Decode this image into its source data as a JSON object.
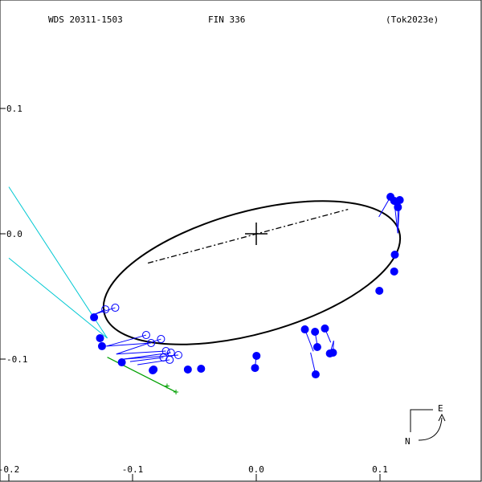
{
  "header": {
    "system_id": "WDS 20311-1503",
    "discoverer": "FIN 336",
    "reference": "(Tok2023e)"
  },
  "compass": {
    "east_label": "E",
    "north_label": "N"
  },
  "chart_data": {
    "type": "scatter",
    "title": "",
    "xlabel": "",
    "ylabel": "",
    "xlim": [
      -0.2,
      0.18
    ],
    "ylim": [
      -0.18,
      0.18
    ],
    "x_ticks": [
      {
        "value": -0.2,
        "label": "-0.2"
      },
      {
        "value": -0.1,
        "label": "-0.1"
      },
      {
        "value": 0.0,
        "label": "0.0"
      },
      {
        "value": 0.1,
        "label": "0.1"
      }
    ],
    "y_ticks": [
      {
        "value": 0.1,
        "label": "0.1"
      },
      {
        "value": 0.0,
        "label": "0.0"
      },
      {
        "value": -0.1,
        "label": "-0.1"
      }
    ],
    "orbit": {
      "center": [
        -0.0036,
        -0.0311
      ],
      "semi_major": 0.1237,
      "semi_minor": 0.0487,
      "tilt_deg": 15.57,
      "line_of_nodes": [
        [
          -0.0876,
          -0.0234
        ],
        [
          0.0742,
          0.0195
        ]
      ],
      "primary": [
        0.0,
        0.0
      ],
      "color": "#000000"
    },
    "cyan_lines": [
      [
        [
          -0.1204,
          -0.0833
        ],
        [
          -0.2,
          0.0374
        ]
      ],
      [
        [
          -0.1204,
          -0.0833
        ],
        [
          -0.2,
          -0.0194
        ]
      ]
    ],
    "cyan_color": "#00c8d2",
    "green_points": [
      [
        -0.0721,
        -0.1215
      ],
      [
        -0.0649,
        -0.1263
      ]
    ],
    "green_color": "#00a000",
    "point_color": "#0000ff",
    "filled_points": [
      [
        -0.1311,
        -0.0667,
        -0.1287,
        -0.0673
      ],
      [
        -0.1263,
        -0.0833,
        -0.1252,
        -0.082
      ],
      [
        -0.1247,
        -0.0897,
        -0.1238,
        -0.0882
      ],
      [
        -0.1087,
        -0.1026,
        -0.109,
        -0.1016
      ],
      [
        -0.0837,
        -0.109,
        -0.0818,
        -0.1074
      ],
      [
        -0.083,
        -0.1083,
        -0.0818,
        -0.1074
      ],
      [
        -0.0553,
        -0.1083,
        -0.0557,
        -0.1079
      ],
      [
        -0.0446,
        -0.1077,
        -0.045,
        -0.1075
      ],
      [
        0.0002,
        -0.0974,
        -0.0002,
        -0.0994
      ],
      [
        -0.001,
        -0.1071,
        -0.0002,
        -0.0994
      ],
      [
        0.0393,
        -0.0763,
        0.0462,
        -0.0938
      ],
      [
        0.0475,
        -0.0782,
        0.0499,
        -0.0924
      ],
      [
        0.0493,
        -0.0904,
        0.0513,
        -0.0916
      ],
      [
        0.048,
        -0.1122,
        0.0439,
        -0.0948
      ],
      [
        0.0555,
        -0.0756,
        0.0602,
        -0.0867
      ],
      [
        0.0595,
        -0.0955,
        0.0626,
        -0.0854
      ],
      [
        0.062,
        -0.0949,
        0.0626,
        -0.0854
      ],
      [
        0.0995,
        -0.0455,
        0.1007,
        -0.0462
      ],
      [
        0.1115,
        -0.0301,
        0.1101,
        -0.0298
      ],
      [
        0.112,
        -0.0167,
        0.1124,
        -0.0162
      ],
      [
        0.1085,
        0.0295,
        0.0991,
        0.0135
      ],
      [
        0.1115,
        0.0263,
        0.1144,
        0.0005
      ],
      [
        0.116,
        0.0269,
        0.1144,
        0.0005
      ],
      [
        0.1145,
        0.0212,
        0.1144,
        0.0005
      ]
    ],
    "open_points": [
      [
        -0.122,
        -0.0603,
        -0.1301,
        -0.064
      ],
      [
        -0.114,
        -0.059,
        -0.1301,
        -0.064
      ],
      [
        -0.089,
        -0.0808,
        -0.1212,
        -0.0897
      ],
      [
        -0.085,
        -0.0872,
        -0.1212,
        -0.0897
      ],
      [
        -0.077,
        -0.084,
        -0.1131,
        -0.096
      ],
      [
        -0.073,
        -0.0936,
        -0.1131,
        -0.096
      ],
      [
        -0.069,
        -0.0949,
        -0.107,
        -0.1
      ],
      [
        -0.063,
        -0.0968,
        -0.107,
        -0.1
      ],
      [
        -0.075,
        -0.0987,
        -0.102,
        -0.102
      ],
      [
        -0.07,
        -0.1006,
        -0.096,
        -0.1045
      ]
    ]
  }
}
